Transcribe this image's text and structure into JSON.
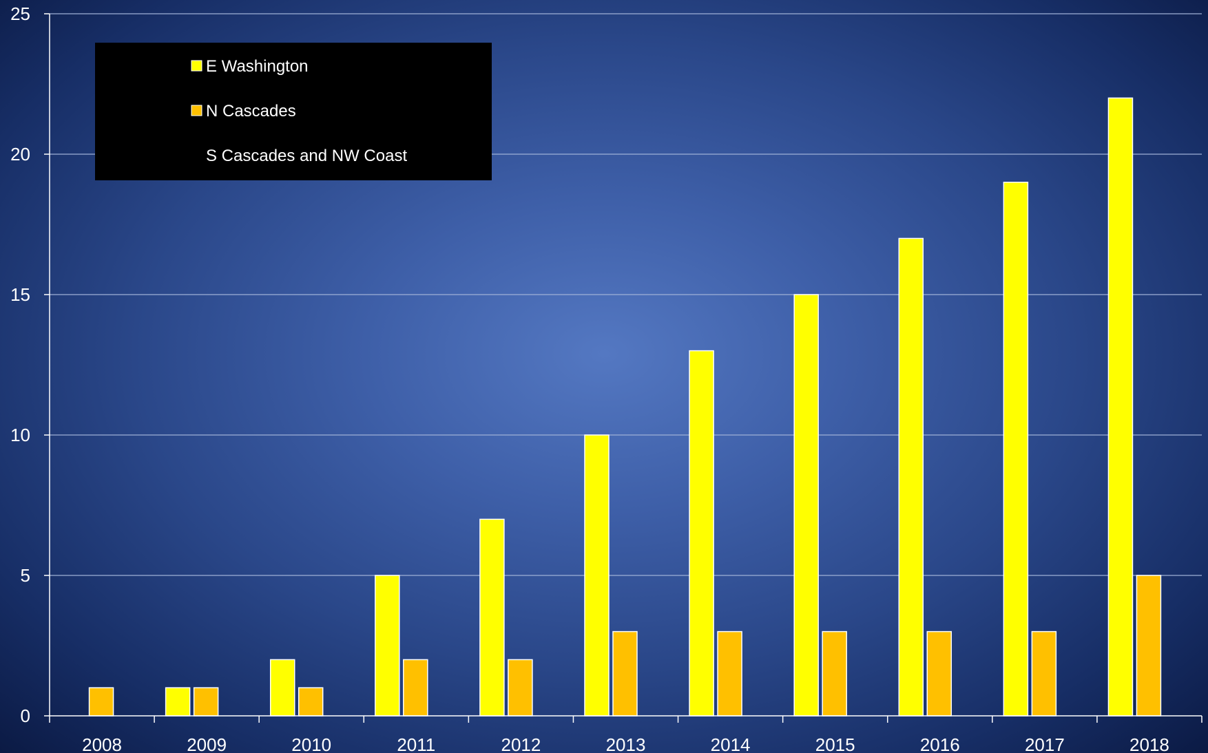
{
  "colors": {
    "series_1": "#ffff00",
    "series_2": "#ffc000",
    "series_3": "#000000",
    "bar_outline": "#ffffff",
    "legend_bg": "#000000",
    "axis": "#ffffff",
    "grid": "#9fb1d6",
    "text": "#ffffff"
  },
  "chart_data": {
    "type": "bar",
    "title": "",
    "xlabel": "",
    "ylabel": "",
    "categories": [
      "2008",
      "2009",
      "2010",
      "2011",
      "2012",
      "2013",
      "2014",
      "2015",
      "2016",
      "2017",
      "2018"
    ],
    "series": [
      {
        "name": "E Washington",
        "values": [
          0,
          1,
          2,
          5,
          7,
          10,
          13,
          15,
          17,
          19,
          22
        ]
      },
      {
        "name": "N Cascades",
        "values": [
          1,
          1,
          1,
          2,
          2,
          3,
          3,
          3,
          3,
          3,
          5
        ]
      },
      {
        "name": "S Cascades and NW Coast",
        "values": [
          0,
          0,
          0,
          0,
          0,
          0,
          0,
          0,
          0,
          0,
          0
        ]
      }
    ],
    "ylim": [
      0,
      25
    ],
    "yticks": [
      0,
      5,
      10,
      15,
      20,
      25
    ],
    "grid": true,
    "legend_position": "top-left"
  }
}
